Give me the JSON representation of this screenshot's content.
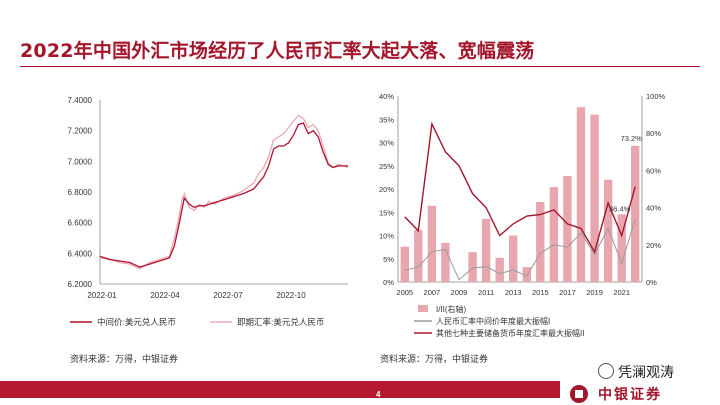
{
  "page": {
    "title": "2022年中国外汇市场经历了人民币汇率大起大落、宽幅震荡",
    "page_number": "4",
    "watermark": "凭澜观涛",
    "brand": "中银证券",
    "source_left": "资料来源：万得，中银证券",
    "source_right": "资料来源：万得，中银证券",
    "accent": "#a3162b"
  },
  "chart_data": [
    {
      "type": "line",
      "y_ticks": [
        "7.4000",
        "7.2000",
        "7.0000",
        "6.8000",
        "6.6000",
        "6.4000",
        "6.2000"
      ],
      "ylim": [
        6.2,
        7.4
      ],
      "x_ticks": [
        "2022-01",
        "2022-04",
        "2022-07",
        "2022-10"
      ],
      "series": [
        {
          "name": "中间价:美元兑人民币",
          "color": "#b0122c",
          "x": [
            0,
            0.04,
            0.08,
            0.12,
            0.16,
            0.2,
            0.24,
            0.28,
            0.3,
            0.32,
            0.33,
            0.34,
            0.36,
            0.38,
            0.4,
            0.42,
            0.44,
            0.46,
            0.5,
            0.54,
            0.58,
            0.62,
            0.64,
            0.66,
            0.68,
            0.7,
            0.72,
            0.74,
            0.76,
            0.78,
            0.8,
            0.82,
            0.84,
            0.86,
            0.88,
            0.9,
            0.92,
            0.94,
            0.96,
            1.0
          ],
          "values": [
            6.38,
            6.36,
            6.35,
            6.34,
            6.31,
            6.33,
            6.35,
            6.37,
            6.45,
            6.6,
            6.68,
            6.76,
            6.72,
            6.7,
            6.71,
            6.71,
            6.72,
            6.73,
            6.75,
            6.77,
            6.79,
            6.82,
            6.86,
            6.9,
            6.97,
            7.08,
            7.1,
            7.1,
            7.12,
            7.17,
            7.24,
            7.25,
            7.18,
            7.2,
            7.16,
            7.06,
            6.98,
            6.96,
            6.97,
            6.97
          ]
        },
        {
          "name": "即期汇率:美元兑人民币",
          "color": "#eaa9b3",
          "x": [
            0,
            0.04,
            0.08,
            0.12,
            0.16,
            0.2,
            0.24,
            0.28,
            0.3,
            0.32,
            0.33,
            0.34,
            0.36,
            0.38,
            0.4,
            0.42,
            0.44,
            0.46,
            0.5,
            0.54,
            0.58,
            0.62,
            0.64,
            0.66,
            0.68,
            0.7,
            0.72,
            0.74,
            0.76,
            0.78,
            0.8,
            0.82,
            0.84,
            0.86,
            0.88,
            0.9,
            0.92,
            0.94,
            0.96,
            1.0
          ],
          "values": [
            6.37,
            6.36,
            6.34,
            6.33,
            6.3,
            6.34,
            6.36,
            6.38,
            6.5,
            6.65,
            6.74,
            6.79,
            6.7,
            6.68,
            6.72,
            6.7,
            6.74,
            6.72,
            6.76,
            6.78,
            6.81,
            6.86,
            6.92,
            6.96,
            7.03,
            7.14,
            7.16,
            7.18,
            7.22,
            7.26,
            7.3,
            7.28,
            7.22,
            7.24,
            7.2,
            7.1,
            6.99,
            6.96,
            6.98,
            6.96
          ]
        }
      ]
    },
    {
      "type": "bar",
      "x_ticks": [
        "2005",
        "2007",
        "2009",
        "2011",
        "2013",
        "2015",
        "2017",
        "2019",
        "2021"
      ],
      "years": [
        2005,
        2006,
        2007,
        2008,
        2009,
        2010,
        2011,
        2012,
        2013,
        2014,
        2015,
        2016,
        2017,
        2018,
        2019,
        2020,
        2021,
        2022
      ],
      "y_left_ticks": [
        "40%",
        "35%",
        "30%",
        "25%",
        "20%",
        "15%",
        "10%",
        "5%",
        "0%"
      ],
      "y_left_lim": [
        0,
        40
      ],
      "y_right_ticks": [
        "100%",
        "80%",
        "60%",
        "40%",
        "20%",
        "0%"
      ],
      "y_right_lim": [
        0,
        100
      ],
      "annotations": [
        "36.4%",
        "73.2%"
      ],
      "series": [
        {
          "name": "I/II(右轴)",
          "type": "bar",
          "axis": "right",
          "color": "#e8a7ae",
          "values": [
            19,
            28,
            41,
            21,
            0,
            16,
            34,
            13,
            25,
            8,
            43,
            51,
            57,
            94,
            90,
            55,
            36.4,
            73.2
          ]
        },
        {
          "name": "人民币汇率中间价年度最大振幅I",
          "type": "line",
          "axis": "left",
          "color": "#9a9a9a",
          "values": [
            2.5,
            3.2,
            6.5,
            7.0,
            0.5,
            3.0,
            3.3,
            1.8,
            2.6,
            1.3,
            6.2,
            8.0,
            7.5,
            10.5,
            6.0,
            11.5,
            4.0,
            13.5
          ]
        },
        {
          "name": "其他七种主要储备货币年度汇率最大振幅II",
          "type": "line",
          "axis": "left",
          "color": "#a3162b",
          "values": [
            14,
            11,
            34,
            28,
            25,
            19,
            16,
            10,
            12.5,
            14.2,
            14.5,
            15.5,
            12.5,
            11.5,
            6.5,
            17.0,
            10.0,
            20.5
          ]
        }
      ]
    }
  ]
}
